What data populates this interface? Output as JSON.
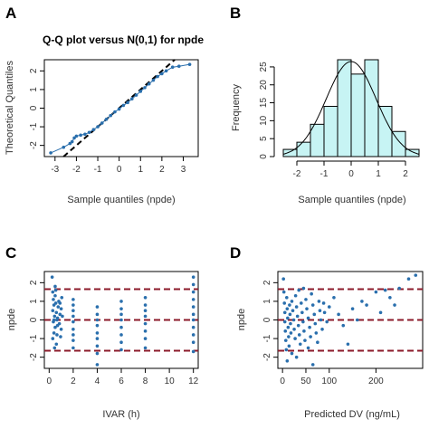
{
  "colors": {
    "points": "#2a6fad",
    "qq_ref_line": "#000000",
    "hist_fill": "#c7f4f4",
    "hist_stroke": "#000000",
    "density_curve": "#000000",
    "threshold_lines": "#8b1a2a"
  },
  "chart_data": [
    {
      "id": "A",
      "type": "scatter",
      "panel_label": "A",
      "title": "Q-Q plot versus N(0,1) for  npde",
      "xlabel": "Sample quantiles (npde)",
      "ylabel": "Theoretical Quantiles",
      "xlim": [
        -3.5,
        3.7
      ],
      "ylim": [
        -2.6,
        2.6
      ],
      "xticks": [
        -3,
        -2,
        -1,
        0,
        1,
        2,
        3
      ],
      "yticks": [
        -2,
        -1,
        0,
        1,
        2
      ],
      "reference_line": {
        "style": "dashed",
        "slope": 1,
        "intercept": 0
      },
      "points": [
        [
          -3.2,
          -2.4
        ],
        [
          -2.6,
          -2.1
        ],
        [
          -2.3,
          -1.9
        ],
        [
          -2.2,
          -1.8
        ],
        [
          -2.1,
          -1.6
        ],
        [
          -2.0,
          -1.5
        ],
        [
          -1.8,
          -1.45
        ],
        [
          -1.6,
          -1.4
        ],
        [
          -1.4,
          -1.3
        ],
        [
          -1.2,
          -1.15
        ],
        [
          -1.0,
          -1.0
        ],
        [
          -0.8,
          -0.8
        ],
        [
          -0.6,
          -0.6
        ],
        [
          -0.4,
          -0.4
        ],
        [
          -0.2,
          -0.2
        ],
        [
          0.0,
          -0.05
        ],
        [
          0.2,
          0.15
        ],
        [
          0.4,
          0.3
        ],
        [
          0.6,
          0.5
        ],
        [
          0.8,
          0.7
        ],
        [
          1.0,
          0.9
        ],
        [
          1.2,
          1.1
        ],
        [
          1.4,
          1.3
        ],
        [
          1.6,
          1.5
        ],
        [
          1.8,
          1.7
        ],
        [
          2.0,
          1.85
        ],
        [
          2.2,
          2.0
        ],
        [
          2.5,
          2.2
        ],
        [
          2.8,
          2.25
        ],
        [
          3.3,
          2.35
        ]
      ]
    },
    {
      "id": "B",
      "type": "bar",
      "panel_label": "B",
      "title": "",
      "xlabel": "Sample quantiles (npde)",
      "ylabel": "Frequency",
      "xlim": [
        -2.5,
        2.5
      ],
      "ylim": [
        0,
        27
      ],
      "xticks": [
        -2,
        -1,
        0,
        1,
        2
      ],
      "yticks": [
        0,
        5,
        10,
        15,
        20,
        25
      ],
      "bin_edges": [
        -2.5,
        -2.0,
        -1.5,
        -1.0,
        -0.5,
        0.0,
        0.5,
        1.0,
        1.5,
        2.0,
        2.5
      ],
      "values": [
        2,
        4,
        9,
        14,
        27,
        23,
        27,
        14,
        7,
        2
      ],
      "density_curve": {
        "type": "normal",
        "mean": 0,
        "sd": 0.92,
        "peak": 26.5
      }
    },
    {
      "id": "C",
      "type": "scatter",
      "panel_label": "C",
      "title": "",
      "xlabel": "IVAR (h)",
      "ylabel": "npde",
      "xlim": [
        -0.4,
        12.4
      ],
      "ylim": [
        -2.6,
        2.6
      ],
      "xticks": [
        0,
        2,
        4,
        6,
        8,
        10,
        12
      ],
      "yticks": [
        -2,
        -1,
        0,
        1,
        2
      ],
      "hlines": [
        -1.65,
        0,
        1.65
      ],
      "points": [
        [
          0.25,
          2.3
        ],
        [
          0.3,
          1.5
        ],
        [
          0.35,
          1.1
        ],
        [
          0.4,
          0.8
        ],
        [
          0.3,
          0.5
        ],
        [
          0.45,
          0.2
        ],
        [
          0.35,
          -0.1
        ],
        [
          0.5,
          -0.4
        ],
        [
          0.4,
          -0.7
        ],
        [
          0.3,
          -1.0
        ],
        [
          0.5,
          1.3
        ],
        [
          0.55,
          0.9
        ],
        [
          0.6,
          0.4
        ],
        [
          0.65,
          0.0
        ],
        [
          0.7,
          -0.3
        ],
        [
          0.75,
          0.7
        ],
        [
          0.8,
          1.0
        ],
        [
          0.9,
          0.3
        ],
        [
          1.0,
          0.6
        ],
        [
          1.0,
          -0.5
        ],
        [
          0.6,
          -1.3
        ],
        [
          0.5,
          1.8
        ],
        [
          0.45,
          -1.5
        ],
        [
          0.7,
          0.1
        ],
        [
          0.85,
          -0.2
        ],
        [
          0.9,
          0.9
        ],
        [
          1.1,
          0.2
        ],
        [
          0.55,
          1.6
        ],
        [
          0.65,
          -0.8
        ],
        [
          0.4,
          0.0
        ],
        [
          0.95,
          -0.9
        ],
        [
          1.05,
          1.2
        ],
        [
          2.0,
          0.8
        ],
        [
          2.0,
          0.5
        ],
        [
          2.0,
          0.2
        ],
        [
          2.0,
          -0.1
        ],
        [
          2.0,
          -0.5
        ],
        [
          2.0,
          -0.8
        ],
        [
          2.0,
          -1.1
        ],
        [
          2.0,
          -1.5
        ],
        [
          2.0,
          1.1
        ],
        [
          4.0,
          0.7
        ],
        [
          4.0,
          0.3
        ],
        [
          4.0,
          0.0
        ],
        [
          4.0,
          -0.3
        ],
        [
          4.0,
          -0.7
        ],
        [
          4.0,
          -1.0
        ],
        [
          4.0,
          -1.4
        ],
        [
          4.0,
          -1.8
        ],
        [
          4.0,
          -2.4
        ],
        [
          6.0,
          1.0
        ],
        [
          6.0,
          0.6
        ],
        [
          6.0,
          0.3
        ],
        [
          6.0,
          0.0
        ],
        [
          6.0,
          -0.4
        ],
        [
          6.0,
          -0.8
        ],
        [
          6.0,
          -1.2
        ],
        [
          6.0,
          -1.6
        ],
        [
          8.0,
          1.2
        ],
        [
          8.0,
          0.8
        ],
        [
          8.0,
          0.5
        ],
        [
          8.0,
          0.2
        ],
        [
          8.0,
          -0.2
        ],
        [
          8.0,
          -0.6
        ],
        [
          8.0,
          -1.0
        ],
        [
          8.0,
          -1.5
        ],
        [
          12.0,
          2.3
        ],
        [
          12.0,
          1.9
        ],
        [
          12.0,
          1.5
        ],
        [
          12.0,
          1.1
        ],
        [
          12.0,
          0.7
        ],
        [
          12.0,
          0.3
        ],
        [
          12.0,
          0.0
        ],
        [
          12.0,
          -0.4
        ],
        [
          12.0,
          -0.8
        ],
        [
          12.0,
          -1.2
        ],
        [
          12.0,
          -1.7
        ]
      ]
    },
    {
      "id": "D",
      "type": "scatter",
      "panel_label": "D",
      "title": "",
      "xlabel": "Predicted DV (ng/mL)",
      "ylabel": "npde",
      "xlim": [
        -10,
        300
      ],
      "ylim": [
        -2.6,
        2.6
      ],
      "xticks": [
        0,
        50,
        100,
        200
      ],
      "yticks": [
        -2,
        -1,
        0,
        1,
        2
      ],
      "hlines": [
        -1.65,
        0,
        1.65
      ],
      "points": [
        [
          2,
          2.2
        ],
        [
          3,
          1.5
        ],
        [
          4,
          0.9
        ],
        [
          5,
          0.4
        ],
        [
          5,
          -0.1
        ],
        [
          6,
          -0.6
        ],
        [
          7,
          -1.1
        ],
        [
          8,
          -1.6
        ],
        [
          9,
          1.2
        ],
        [
          10,
          0.6
        ],
        [
          11,
          0.1
        ],
        [
          12,
          -0.4
        ],
        [
          13,
          -0.9
        ],
        [
          14,
          -1.4
        ],
        [
          15,
          0.8
        ],
        [
          16,
          0.3
        ],
        [
          17,
          -0.2
        ],
        [
          18,
          -0.7
        ],
        [
          20,
          1.0
        ],
        [
          22,
          0.5
        ],
        [
          24,
          0.0
        ],
        [
          25,
          -0.5
        ],
        [
          27,
          -1.0
        ],
        [
          28,
          1.3
        ],
        [
          30,
          0.7
        ],
        [
          32,
          0.2
        ],
        [
          34,
          -0.3
        ],
        [
          36,
          -0.8
        ],
        [
          38,
          -1.3
        ],
        [
          40,
          0.9
        ],
        [
          42,
          0.4
        ],
        [
          44,
          -0.1
        ],
        [
          46,
          -0.6
        ],
        [
          48,
          -1.1
        ],
        [
          50,
          1.1
        ],
        [
          52,
          0.6
        ],
        [
          55,
          0.1
        ],
        [
          58,
          -0.4
        ],
        [
          60,
          -0.9
        ],
        [
          62,
          1.4
        ],
        [
          65,
          0.8
        ],
        [
          68,
          0.3
        ],
        [
          70,
          -0.2
        ],
        [
          72,
          -0.7
        ],
        [
          75,
          -1.2
        ],
        [
          78,
          1.0
        ],
        [
          80,
          0.5
        ],
        [
          82,
          0.0
        ],
        [
          85,
          -0.5
        ],
        [
          88,
          0.9
        ],
        [
          90,
          0.4
        ],
        [
          95,
          -0.1
        ],
        [
          100,
          0.7
        ],
        [
          110,
          1.2
        ],
        [
          120,
          0.3
        ],
        [
          130,
          -0.3
        ],
        [
          140,
          -1.3
        ],
        [
          150,
          0.6
        ],
        [
          160,
          0.0
        ],
        [
          170,
          1.0
        ],
        [
          180,
          0.8
        ],
        [
          200,
          1.5
        ],
        [
          210,
          0.4
        ],
        [
          220,
          1.6
        ],
        [
          230,
          1.2
        ],
        [
          240,
          0.8
        ],
        [
          250,
          1.7
        ],
        [
          270,
          2.2
        ],
        [
          285,
          2.4
        ],
        [
          10,
          -2.2
        ],
        [
          20,
          -1.8
        ],
        [
          30,
          -2.0
        ],
        [
          55,
          -1.5
        ],
        [
          65,
          -2.4
        ],
        [
          45,
          1.7
        ],
        [
          35,
          1.6
        ]
      ]
    }
  ]
}
